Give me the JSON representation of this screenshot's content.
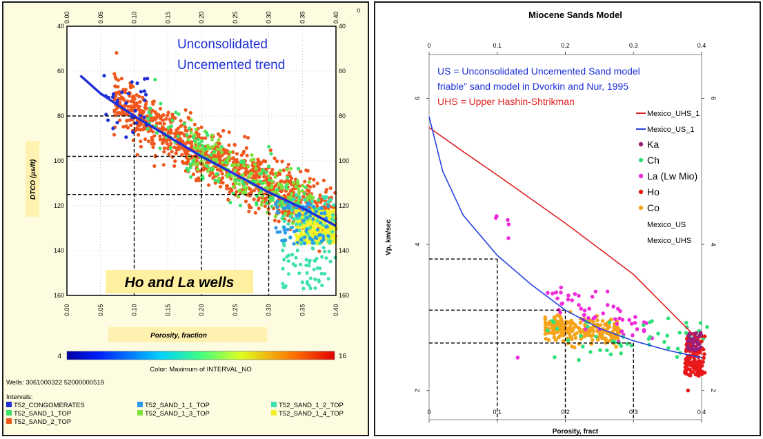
{
  "left_chart": {
    "ylabel": "DTCO (µs/ft)",
    "xlabel": "Porosity, fraction",
    "title": "Ho and La wells",
    "annotation_lines": [
      "Unconsolidated",
      "Uncemented trend"
    ],
    "x_ticks": [
      "0.00",
      "0.05",
      "0.10",
      "0.15",
      "0.20",
      "0.25",
      "0.30",
      "0.35",
      "0.40"
    ],
    "y_ticks": [
      "40",
      "60",
      "80",
      "100",
      "120",
      "140",
      "160"
    ],
    "colorbar_min": "4",
    "colorbar_max": "16",
    "colorbar_caption": "Color: Maximum of INTERVAL_NO",
    "wells_line": "Wells:  3061000322  52000000519",
    "intervals_label": "Intervals:",
    "legend": [
      {
        "label": "T52_CONGOMERATES",
        "color": "#1f2fd6"
      },
      {
        "label": "T52_SAND_1_1_TOP",
        "color": "#2a9be8"
      },
      {
        "label": "T52_SAND_1_2_TOP",
        "color": "#3fe0b0"
      },
      {
        "label": "T52_SAND_1_TOP",
        "color": "#3ee36a"
      },
      {
        "label": "T52_SAND_1_3_TOP",
        "color": "#7ee23a"
      },
      {
        "label": "T52_SAND_1_4_TOP",
        "color": "#f2f22a"
      },
      {
        "label": "T52_SAND_2_TOP",
        "color": "#f0581e"
      }
    ],
    "corner_mark": "o"
  },
  "right_chart": {
    "title": "Miocene Sands Model",
    "xlabel": "Porosity, fract",
    "ylabel": "Vp, km/sec",
    "x_ticks": [
      "0",
      "0.1",
      "0.2",
      "0.3",
      "0.4"
    ],
    "y_ticks": [
      "2",
      "4",
      "6"
    ],
    "note_lines": [
      {
        "text": "US = Unconsolidated Uncemented  Sand model",
        "color": "#1c2fd8"
      },
      {
        "text": "friable” sand model in Dvorkin and Nur, 1995",
        "color": "#1c2fd8"
      },
      {
        "text": "UHS = Upper Hashin-Shtrikman",
        "color": "#e02020"
      }
    ],
    "legend_lines": [
      {
        "label": "Mexico_UHS_1",
        "color": "#e02020"
      },
      {
        "label": "Mexico_US_1",
        "color": "#2440e0"
      }
    ],
    "legend_points": [
      {
        "label": "Ka",
        "color": "#9b1f7a"
      },
      {
        "label": "Ch",
        "color": "#2fe07a"
      },
      {
        "label": "La (Lw Mio)",
        "color": "#ee2ad8"
      },
      {
        "label": "Ho",
        "color": "#e81818"
      },
      {
        "label": "Co",
        "color": "#f5a318"
      }
    ],
    "legend_text_only": [
      "Mexico_US",
      "Mexico_UHS"
    ]
  },
  "chart_data": [
    {
      "type": "scatter",
      "title": "Ho and La wells",
      "xlabel": "Porosity, fraction",
      "ylabel": "DTCO (µs/ft)",
      "xlim": [
        0.0,
        0.4
      ],
      "ylim": [
        40,
        160
      ],
      "y_inverted": true,
      "color_scale": {
        "min": 4,
        "max": 16,
        "label": "Color: Maximum of INTERVAL_NO"
      },
      "trend_line": {
        "name": "Unconsolidated Uncemented trend",
        "color": "#1f2fd6",
        "points": [
          [
            0.02,
            62
          ],
          [
            0.05,
            70
          ],
          [
            0.1,
            80
          ],
          [
            0.15,
            89
          ],
          [
            0.2,
            98
          ],
          [
            0.25,
            106
          ],
          [
            0.3,
            114
          ],
          [
            0.35,
            121
          ],
          [
            0.4,
            129
          ]
        ]
      },
      "guide_lines": {
        "vertical_x": [
          0.1,
          0.2,
          0.3
        ],
        "horizontal_y": [
          80,
          98,
          115
        ]
      },
      "clusters": [
        {
          "name": "T52_SAND_2_TOP",
          "color": "#f0581e",
          "count": 1100,
          "x_range": [
            0.07,
            0.4
          ],
          "y_center_trend": true,
          "spread": 6
        },
        {
          "name": "T52_SAND_1_3_TOP",
          "color": "#7ee23a",
          "count": 220,
          "x_range": [
            0.18,
            0.37
          ],
          "y_center_trend": true,
          "spread": 5
        },
        {
          "name": "T52_SAND_1_TOP",
          "color": "#3ee36a",
          "count": 120,
          "x_range": [
            0.12,
            0.38
          ],
          "y_center_trend": true,
          "spread": 7
        },
        {
          "name": "T52_SAND_1_4_TOP",
          "color": "#f2f22a",
          "count": 320,
          "x_range": [
            0.34,
            0.4
          ],
          "y_range": [
            122,
            137
          ]
        },
        {
          "name": "T52_SAND_1_2_TOP",
          "color": "#3fe0b0",
          "count": 120,
          "x_range": [
            0.32,
            0.4
          ],
          "y_range": [
            115,
            157
          ]
        },
        {
          "name": "T52_SAND_1_1_TOP",
          "color": "#2a9be8",
          "count": 80,
          "x_range": [
            0.31,
            0.39
          ],
          "y_range": [
            118,
            137
          ]
        },
        {
          "name": "T52_CONGOMERATES",
          "color": "#1f2fd6",
          "count": 30,
          "x_range": [
            0.05,
            0.12
          ],
          "y_range": [
            62,
            90
          ]
        }
      ]
    },
    {
      "type": "scatter",
      "title": "Miocene Sands Model",
      "xlabel": "Porosity, fract",
      "ylabel": "Vp, km/sec",
      "xlim": [
        0.0,
        0.4
      ],
      "ylim": [
        1.6,
        6.6
      ],
      "series_lines": [
        {
          "name": "Mexico_UHS_1",
          "color": "#e02020",
          "points": [
            [
              0.0,
              5.6
            ],
            [
              0.05,
              5.27
            ],
            [
              0.1,
              4.95
            ],
            [
              0.15,
              4.62
            ],
            [
              0.2,
              4.29
            ],
            [
              0.25,
              3.94
            ],
            [
              0.3,
              3.59
            ],
            [
              0.35,
              3.12
            ],
            [
              0.4,
              2.65
            ]
          ]
        },
        {
          "name": "Mexico_US_1",
          "color": "#2440e0",
          "points": [
            [
              0.0,
              5.75
            ],
            [
              0.02,
              5.0
            ],
            [
              0.05,
              4.4
            ],
            [
              0.1,
              3.85
            ],
            [
              0.15,
              3.45
            ],
            [
              0.2,
              3.1
            ],
            [
              0.25,
              2.85
            ],
            [
              0.3,
              2.68
            ],
            [
              0.35,
              2.55
            ],
            [
              0.4,
              2.45
            ]
          ]
        }
      ],
      "guide_lines": {
        "vertical_x": [
          0.1,
          0.2,
          0.3
        ],
        "horizontal_y": [
          3.8,
          3.1,
          2.65
        ]
      },
      "points_groups": [
        {
          "name": "Co",
          "color": "#f5a318",
          "count": 240,
          "x_range": [
            0.17,
            0.28
          ],
          "y_range": [
            2.65,
            3.05
          ]
        },
        {
          "name": "La (Lw Mio)",
          "color": "#ee2ad8",
          "count": 60,
          "x_range": [
            0.09,
            0.33
          ],
          "y_range": [
            2.45,
            4.4
          ]
        },
        {
          "name": "Ch",
          "color": "#2fe07a",
          "count": 50,
          "x_range": [
            0.17,
            0.41
          ],
          "y_range": [
            2.4,
            3.0
          ]
        },
        {
          "name": "Ho",
          "color": "#e81818",
          "count": 120,
          "x_range": [
            0.375,
            0.405
          ],
          "y_range": [
            2.2,
            2.75
          ]
        },
        {
          "name": "Ka",
          "color": "#9b1f7a",
          "count": 40,
          "x_range": [
            0.38,
            0.4
          ],
          "y_range": [
            2.55,
            2.8
          ]
        }
      ]
    }
  ]
}
